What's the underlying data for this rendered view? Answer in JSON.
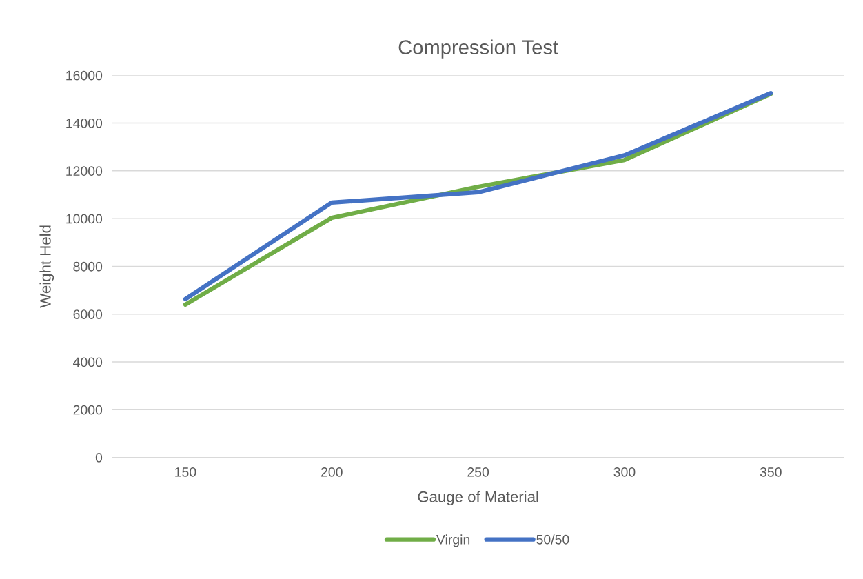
{
  "chart_data": {
    "type": "line",
    "title": "Compression Test",
    "xlabel": "Gauge of Material",
    "ylabel": "Weight Held",
    "categories": [
      "150",
      "200",
      "250",
      "300",
      "350"
    ],
    "series": [
      {
        "name": "Virgin",
        "color": "#70ad47",
        "values": [
          6400,
          10030,
          11330,
          12450,
          15220
        ]
      },
      {
        "name": "50/50",
        "color": "#4472c4",
        "values": [
          6630,
          10670,
          11100,
          12650,
          15250
        ]
      }
    ],
    "ylim": [
      0,
      16000
    ],
    "yticks": [
      0,
      2000,
      4000,
      6000,
      8000,
      10000,
      12000,
      14000,
      16000
    ],
    "grid": "y",
    "legend": "bottom",
    "marker": "none",
    "line_style": "solid"
  }
}
